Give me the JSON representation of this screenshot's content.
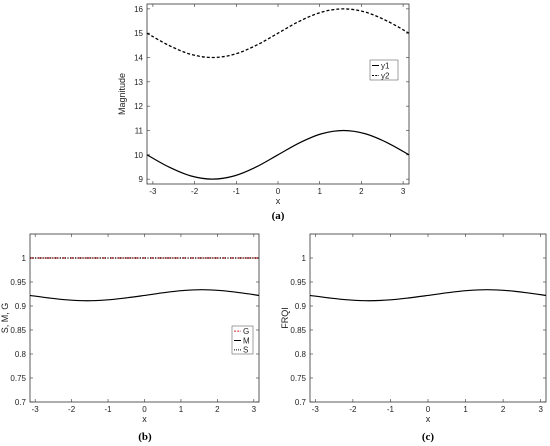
{
  "chart_data": [
    {
      "type": "line",
      "caption": "(a)",
      "xlabel": "x",
      "ylabel": "Magnitude",
      "xlim": [
        -3.1416,
        3.1416
      ],
      "ylim": [
        8.8,
        16.2
      ],
      "xticks": [
        -3,
        -2,
        -1,
        0,
        1,
        2,
        3
      ],
      "yticks": [
        9,
        10,
        11,
        12,
        13,
        14,
        15,
        16
      ],
      "legend": "right",
      "grid": false,
      "series": [
        {
          "name": "y1",
          "style": "solid",
          "color": "#000000",
          "x": [
            -3.1416,
            -2.618,
            -2.0944,
            -1.5708,
            -1.0472,
            -0.5236,
            0,
            0.5236,
            1.0472,
            1.5708,
            2.0944,
            2.618,
            3.1416
          ],
          "y": [
            10.0,
            9.5,
            9.134,
            9.0,
            9.134,
            9.5,
            10.0,
            10.5,
            10.866,
            11.0,
            10.866,
            10.5,
            10.0
          ]
        },
        {
          "name": "y2",
          "style": "dashed",
          "color": "#000000",
          "x": [
            -3.1416,
            -2.618,
            -2.0944,
            -1.5708,
            -1.0472,
            -0.5236,
            0,
            0.5236,
            1.0472,
            1.5708,
            2.0944,
            2.618,
            3.1416
          ],
          "y": [
            15.0,
            14.5,
            14.134,
            14.0,
            14.134,
            14.5,
            15.0,
            15.5,
            15.866,
            16.0,
            15.866,
            15.5,
            15.0
          ]
        }
      ]
    },
    {
      "type": "line",
      "caption": "(b)",
      "xlabel": "x",
      "ylabel": "S, M, G",
      "xlim": [
        -3.1416,
        3.1416
      ],
      "ylim": [
        0.7,
        1.05
      ],
      "xticks": [
        -3,
        -2,
        -1,
        0,
        1,
        2,
        3
      ],
      "yticks": [
        0.7,
        0.75,
        0.8,
        0.85,
        0.9,
        0.95,
        1
      ],
      "legend": "right",
      "grid": false,
      "series": [
        {
          "name": "G",
          "style": "dashdot",
          "color": "#cc2222",
          "x": [
            -3.1416,
            3.1416
          ],
          "y": [
            1.0,
            1.0
          ]
        },
        {
          "name": "M",
          "style": "solid",
          "color": "#000000",
          "x": [
            -3.1416,
            -2.618,
            -2.0944,
            -1.5708,
            -1.0472,
            -0.5236,
            0,
            0.5236,
            1.0472,
            1.5708,
            2.0944,
            2.618,
            3.1416
          ],
          "y": [
            0.922,
            0.9167,
            0.9126,
            0.911,
            0.9126,
            0.9167,
            0.922,
            0.9277,
            0.9322,
            0.934,
            0.9322,
            0.9277,
            0.922
          ]
        },
        {
          "name": "S",
          "style": "dotted",
          "color": "#000000",
          "x": [
            -3.1416,
            3.1416
          ],
          "y": [
            1.0,
            1.0
          ]
        }
      ]
    },
    {
      "type": "line",
      "caption": "(c)",
      "xlabel": "x",
      "ylabel": "FRQI",
      "xlim": [
        -3.1416,
        3.1416
      ],
      "ylim": [
        0.7,
        1.05
      ],
      "xticks": [
        -3,
        -2,
        -1,
        0,
        1,
        2,
        3
      ],
      "yticks": [
        0.7,
        0.75,
        0.8,
        0.85,
        0.9,
        0.95,
        1
      ],
      "grid": false,
      "series": [
        {
          "style": "solid",
          "color": "#000000",
          "x": [
            -3.1416,
            -2.618,
            -2.0944,
            -1.5708,
            -1.0472,
            -0.5236,
            0,
            0.5236,
            1.0472,
            1.5708,
            2.0944,
            2.618,
            3.1416
          ],
          "y": [
            0.922,
            0.9167,
            0.9126,
            0.911,
            0.9126,
            0.9167,
            0.922,
            0.9277,
            0.9322,
            0.934,
            0.9322,
            0.9277,
            0.922
          ]
        }
      ]
    }
  ]
}
